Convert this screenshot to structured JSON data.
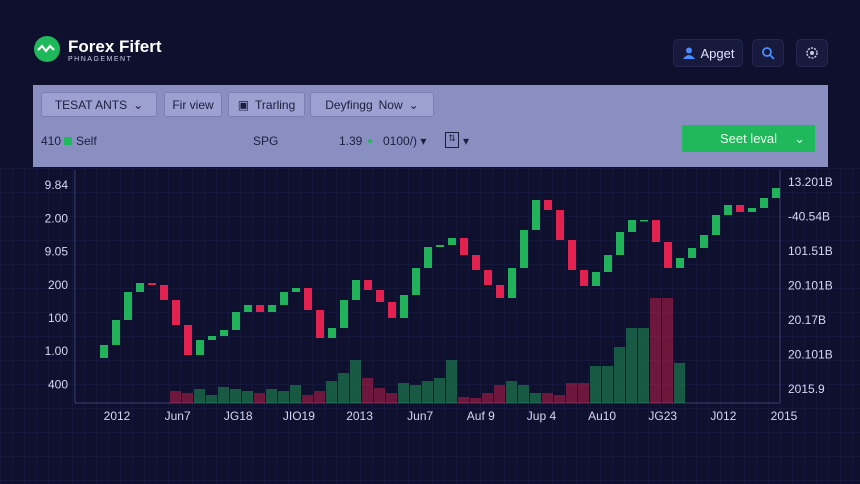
{
  "header": {
    "brand": "Forex Fifert",
    "tagline": "PHNAGEMENT",
    "account": "Apget"
  },
  "toolbar": {
    "row1": [
      "TESAT ANTS",
      "Fir view",
      "Trarling",
      "Deyfingg",
      "Now"
    ],
    "row2": {
      "amount": "410",
      "side": "Self",
      "symbol": "SPG",
      "price": "1.39",
      "size": "0100/)",
      "action": "Seet leval"
    }
  },
  "chart_data": {
    "type": "candlestick",
    "open": [
      45,
      58,
      83,
      111,
      120,
      118,
      103,
      78,
      48,
      63,
      67,
      73,
      91,
      98,
      91,
      98,
      111,
      115,
      93,
      65,
      75,
      103,
      123,
      113,
      101,
      85,
      108,
      135,
      156,
      158,
      165,
      148,
      133,
      118,
      105,
      135,
      173,
      203,
      193,
      163,
      133,
      117,
      131,
      148,
      171,
      183,
      183,
      161,
      135,
      145,
      155,
      168,
      188,
      198,
      191,
      195,
      205
    ],
    "close": [
      58,
      83,
      111,
      120,
      118,
      103,
      78,
      48,
      63,
      67,
      73,
      91,
      98,
      91,
      98,
      111,
      115,
      93,
      65,
      75,
      103,
      123,
      113,
      101,
      85,
      108,
      135,
      156,
      158,
      165,
      148,
      133,
      118,
      105,
      135,
      173,
      203,
      193,
      163,
      133,
      117,
      131,
      148,
      171,
      183,
      183,
      161,
      135,
      145,
      155,
      168,
      188,
      198,
      191,
      195,
      205,
      215
    ],
    "volume": [
      null,
      null,
      null,
      null,
      null,
      null,
      12,
      10,
      14,
      8,
      16,
      14,
      12,
      10,
      14,
      12,
      18,
      8,
      12,
      22,
      30,
      43,
      25,
      15,
      10,
      20,
      18,
      22,
      25,
      43,
      6,
      5,
      10,
      18,
      22,
      18,
      10,
      10,
      8,
      20,
      20,
      37,
      37,
      56,
      75,
      75,
      105,
      105,
      40,
      null,
      null,
      null,
      null,
      null,
      null,
      null,
      null
    ],
    "ylim": [
      0,
      233
    ],
    "up_color": "#22b35a",
    "down_color": "#e3214f",
    "left_labels": [
      "9.84",
      "2.00",
      "9.05",
      "200",
      "100",
      "1.00",
      "400"
    ],
    "right_labels": [
      "13.201B",
      "-40.54B",
      "101.51B",
      "20.101B",
      "20.17B",
      "20.101B",
      "2015.9"
    ],
    "x_labels": [
      "2012",
      "Jun7",
      "JG18",
      "JIO19",
      "2013",
      "Jun7",
      "Auf 9",
      "Jup 4",
      "Au10",
      "JG23",
      "J012",
      "2015"
    ]
  }
}
